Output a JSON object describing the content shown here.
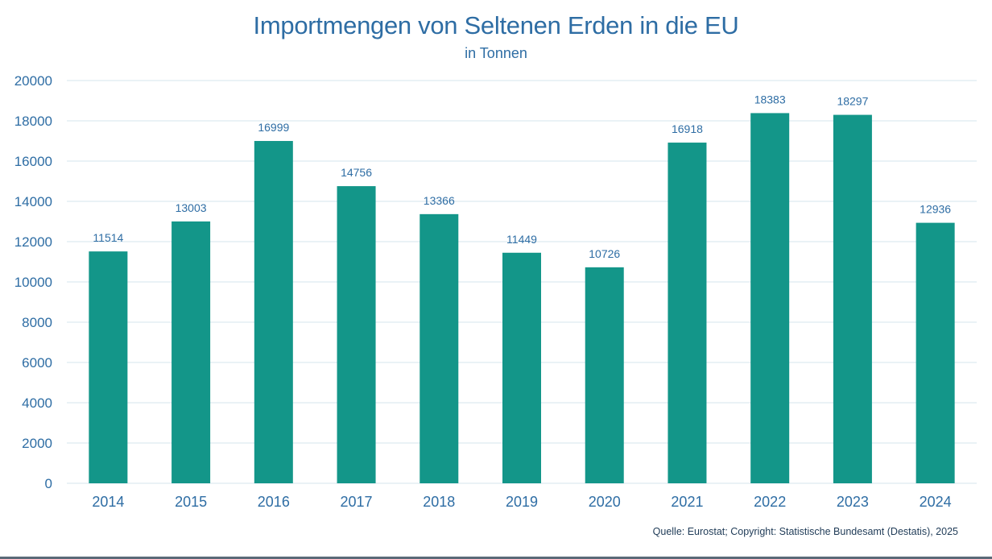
{
  "colors": {
    "bar": "#139689",
    "title": "#2e6da4",
    "axis_text": "#2e6da4",
    "data_label": "#2e6da4",
    "grid": "#dde9f0"
  },
  "chart_data": {
    "type": "bar",
    "title": "Importmengen von Seltenen Erden in die EU",
    "subtitle": "in Tonnen",
    "categories": [
      "2014",
      "2015",
      "2016",
      "2017",
      "2018",
      "2019",
      "2020",
      "2021",
      "2022",
      "2023",
      "2024"
    ],
    "values": [
      11514,
      13003,
      16999,
      14756,
      13366,
      11449,
      10726,
      16918,
      18383,
      18297,
      12936
    ],
    "yticks": [
      "0",
      "2000",
      "4000",
      "6000",
      "8000",
      "10000",
      "12000",
      "14000",
      "16000",
      "18000",
      "20000"
    ],
    "ylim": [
      0,
      20000
    ],
    "grid": true,
    "legend": "none",
    "source": "Quelle: Eurostat; Copyright: Statistische Bundesamt (Destatis), 2025"
  }
}
